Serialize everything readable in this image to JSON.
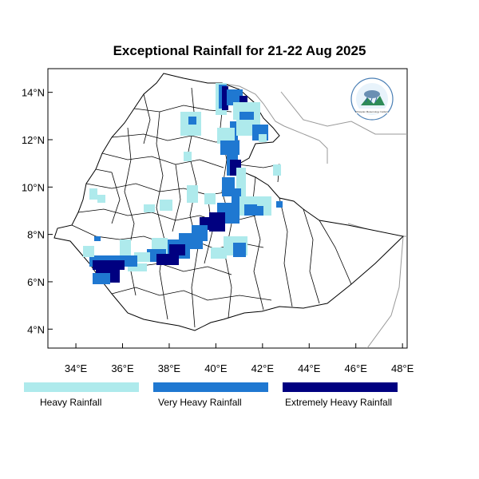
{
  "title": "Exceptional Rainfall for 21-22 Aug 2025",
  "axes": {
    "x_ticks": [
      "34°E",
      "36°E",
      "38°E",
      "40°E",
      "42°E",
      "44°E",
      "46°E",
      "48°E"
    ],
    "y_ticks": [
      "14°N",
      "12°N",
      "10°N",
      "8°N",
      "6°N",
      "4°N"
    ],
    "x_range": [
      32.8,
      48.2
    ],
    "y_range": [
      3.2,
      15.0
    ]
  },
  "legend": [
    {
      "label": "Heavy Rainfall",
      "color": "#aeeaec"
    },
    {
      "label": "Very Heavy Rainfall",
      "color": "#1f78d1"
    },
    {
      "label": "Extremely Heavy Rainfall",
      "color": "#000080"
    }
  ],
  "logo": {
    "text": "Ethiopian Meteorology Institute",
    "icon": "rain-cloud-logo-icon"
  }
}
